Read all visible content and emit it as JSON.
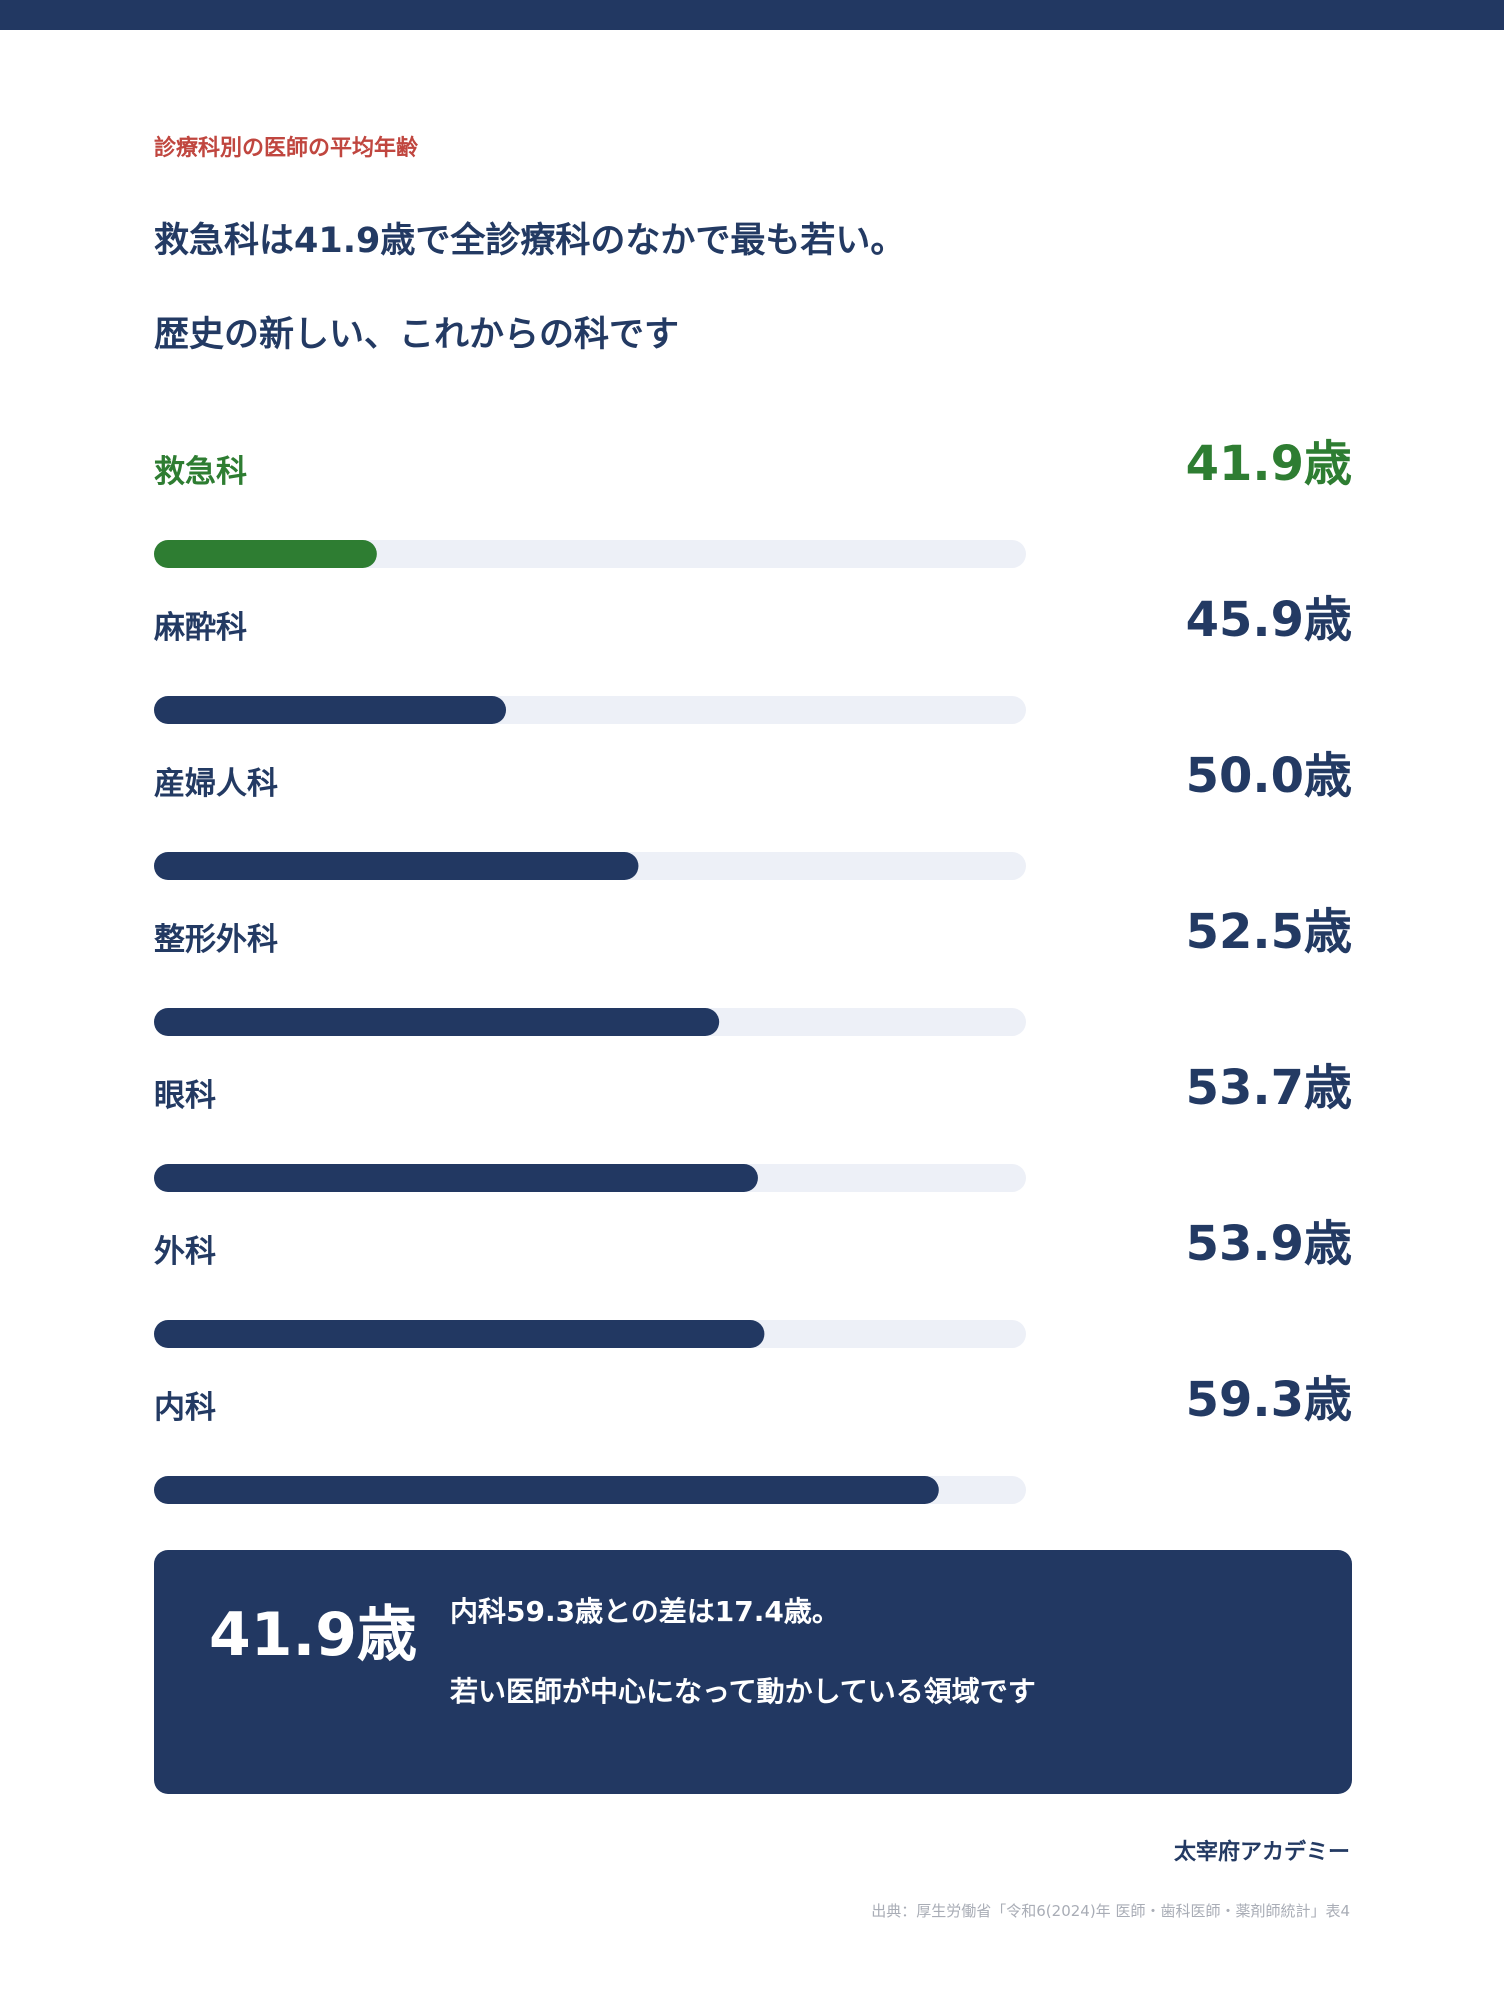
{
  "header": {
    "kicker": "診療科別の医師の平均年齢",
    "headline_line1": "救急科は41.9歳で全診療科のなかで最も若い。",
    "headline_line2": "歴史の新しい、これからの科です"
  },
  "chart_data": {
    "type": "bar",
    "orientation": "horizontal",
    "categories": [
      "救急科",
      "麻酔科",
      "産婦人科",
      "整形外科",
      "眼科",
      "外科",
      "内科"
    ],
    "values": [
      41.9,
      45.9,
      50.0,
      52.5,
      53.7,
      53.9,
      59.3
    ],
    "value_labels": [
      "41.9歳",
      "45.9歳",
      "50.0歳",
      "52.5歳",
      "53.7歳",
      "53.9歳",
      "59.3歳"
    ],
    "xlim": [
      35,
      62
    ],
    "highlight_index": 0,
    "grid": false,
    "colors": {
      "highlight": "#2e7d32",
      "bar": "#223862",
      "track": "#edf0f7",
      "text": "#233a63"
    }
  },
  "summary": {
    "value": "41.9歳",
    "line1": "内科59.3歳との差は17.4歳。",
    "line2": "若い医師が中心になって動かしている領域です"
  },
  "footer": {
    "brand": "太宰府アカデミー",
    "source": "出典：厚生労働省「令和6(2024)年 医師・歯科医師・薬剤師統計」表4"
  }
}
